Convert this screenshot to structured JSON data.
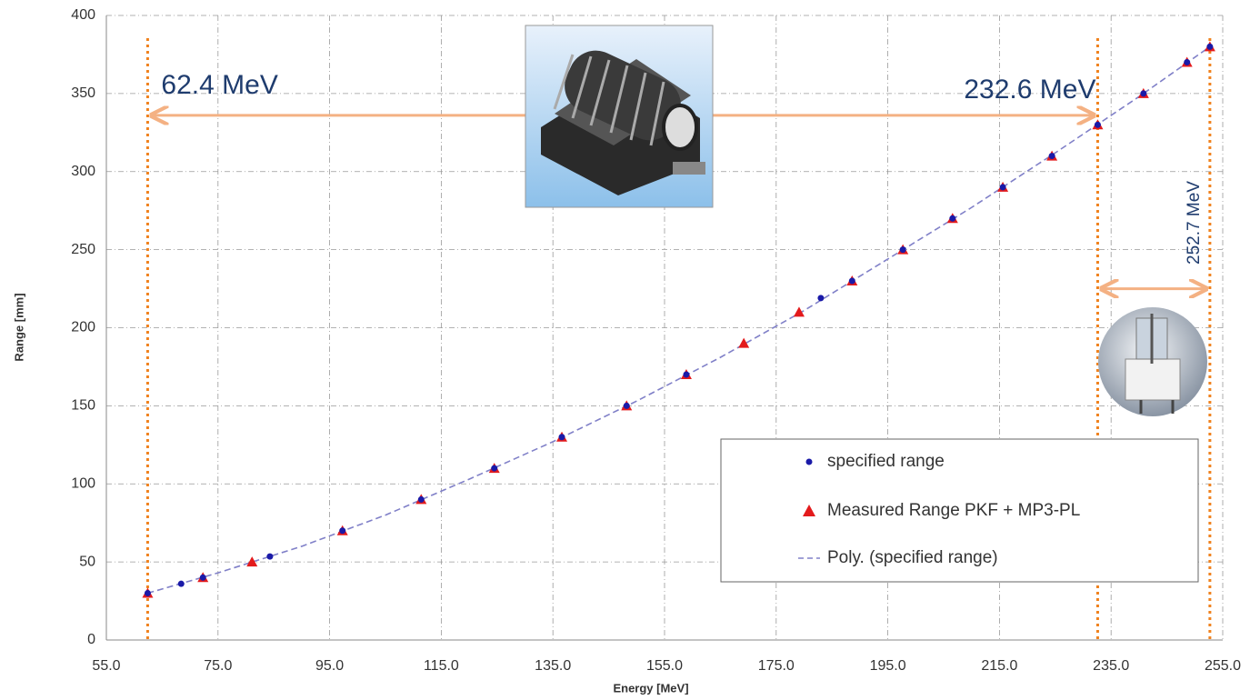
{
  "chart_data": {
    "type": "scatter",
    "x_label": "Energy [MeV]",
    "y_label": "Range [mm]",
    "xlim": [
      55,
      255
    ],
    "ylim": [
      0,
      400
    ],
    "xticks": [
      {
        "value": 55,
        "label": "55.0"
      },
      {
        "value": 75,
        "label": "75.0"
      },
      {
        "value": 95,
        "label": "95.0"
      },
      {
        "value": 115,
        "label": "115.0"
      },
      {
        "value": 135,
        "label": "135.0"
      },
      {
        "value": 155,
        "label": "155.0"
      },
      {
        "value": 175,
        "label": "175.0"
      },
      {
        "value": 195,
        "label": "195.0"
      },
      {
        "value": 215,
        "label": "215.0"
      },
      {
        "value": 235,
        "label": "235.0"
      },
      {
        "value": 255,
        "label": "255.0"
      }
    ],
    "yticks": [
      0,
      50,
      100,
      150,
      200,
      250,
      300,
      350,
      400
    ],
    "grid": true,
    "series": [
      {
        "name": "specified range",
        "color": "#1a1aa8",
        "marker": "circle",
        "x": [
          62.4,
          68.4,
          72.3,
          84.3,
          97.3,
          111.4,
          124.5,
          136.6,
          148.2,
          158.9,
          183,
          188.6,
          197.7,
          206.6,
          215.6,
          224.4,
          232.6,
          240.8,
          248.6,
          252.7
        ],
        "values": [
          30,
          36,
          40,
          53.5,
          70,
          90,
          110,
          130,
          150,
          170,
          219,
          230,
          250,
          270,
          290,
          310,
          330,
          350,
          370,
          380
        ]
      },
      {
        "name": "Measured Range PKF + MP3-PL",
        "color": "#e31a1c",
        "marker": "triangle",
        "x": [
          62.4,
          72.3,
          81.1,
          97.3,
          111.4,
          124.5,
          136.6,
          148.2,
          158.9,
          169.2,
          179.1,
          188.6,
          197.7,
          206.6,
          215.6,
          224.4,
          232.6,
          240.8,
          248.6,
          252.7
        ],
        "values": [
          30,
          40,
          50,
          70,
          90,
          110,
          130,
          150,
          170,
          190,
          210,
          230,
          250,
          270,
          290,
          310,
          330,
          350,
          370,
          380
        ]
      },
      {
        "name": "Poly. (specified range)",
        "color": "#8080c8",
        "marker": "dashed-line",
        "x": [
          62.4,
          75,
          90,
          105,
          120,
          135,
          150,
          165,
          180,
          195,
          210,
          225,
          240,
          252.7
        ],
        "values": [
          30,
          43,
          60,
          80,
          103,
          127,
          153,
          181,
          211,
          244,
          277,
          312,
          348,
          380
        ]
      }
    ],
    "annotations": [
      {
        "x": 62.4,
        "label": "62.4 MeV"
      },
      {
        "x": 232.6,
        "label": "232.6 MeV"
      },
      {
        "x": 252.7,
        "label": "252.7 MeV"
      }
    ],
    "arrows": [
      {
        "y": 336,
        "from": 62.4,
        "to": 232.6
      },
      {
        "y": 225,
        "from": 232.6,
        "to": 252.7
      }
    ],
    "legend": "lower-right"
  }
}
